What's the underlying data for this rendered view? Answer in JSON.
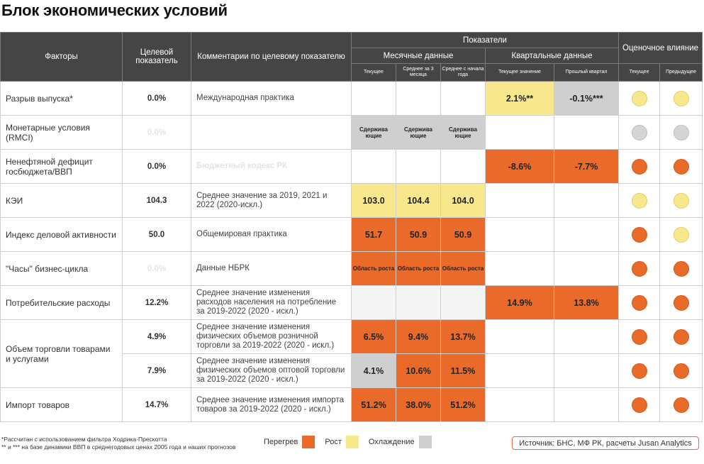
{
  "title": "Блок экономических условий",
  "header": {
    "factors": "Факторы",
    "target": "Целевой показатель",
    "comment": "Комментарии по целевому показателю",
    "indicators": "Показатели",
    "impact": "Оценочное влияние",
    "monthly": "Месячные данные",
    "quarterly": "Квартальные данные",
    "m_current": "Текущее",
    "m_3month": "Среднее за 3 месяца",
    "m_ytd": "Среднее с начала года",
    "q_current": "Текущее значение",
    "q_prev": "Прошлый квартал",
    "i_current": "Текущее",
    "i_prev": "Предыдущее"
  },
  "rows": [
    {
      "factor": "Разрыв выпуска*",
      "target": "0.0%",
      "comment": "Международная практика",
      "m": [
        "",
        "",
        ""
      ],
      "q": [
        "2.1%**",
        "-0.1%***"
      ],
      "impact": [
        "yellow",
        "yellow"
      ]
    },
    {
      "factor": "Монетарные условия (RMCI)",
      "target": "0.0%",
      "comment": "",
      "m": [
        "Сдержива ющие",
        "Сдержива ющие",
        "Сдержива ющие"
      ],
      "q": [
        "",
        ""
      ],
      "impact": [
        "gray",
        "gray"
      ]
    },
    {
      "factor": "Ненефтяной дефицит госбюджета/ВВП",
      "target": "0.0%",
      "comment": "Бюджетный кодекс РК",
      "m": [
        "",
        "",
        ""
      ],
      "q": [
        "-8.6%",
        "-7.7%"
      ],
      "impact": [
        "orange",
        "orange"
      ]
    },
    {
      "factor": "КЭИ",
      "target": "104.3",
      "comment": "Среднее значение за 2019, 2021 и 2022 (2020-искл.)",
      "m": [
        "103.0",
        "104.4",
        "104.0"
      ],
      "q": [
        "",
        ""
      ],
      "impact": [
        "yellow",
        "yellow"
      ]
    },
    {
      "factor": "Индекс деловой активности",
      "target": "50.0",
      "comment": "Общемировая практика",
      "m": [
        "51.7",
        "50.9",
        "50.9"
      ],
      "q": [
        "",
        ""
      ],
      "impact": [
        "orange",
        "yellow"
      ]
    },
    {
      "factor": "\"Часы\" бизнес-цикла",
      "target": "0.0%",
      "comment": "Данные НБРК",
      "m": [
        "Область роста",
        "Область роста",
        "Область роста"
      ],
      "q": [
        "",
        ""
      ],
      "impact": [
        "orange",
        "orange"
      ]
    },
    {
      "factor": "Потребительские расходы",
      "target": "12.2%",
      "comment": "Среднее значение изменения расходов населения на потребление за 2019-2022 (2020 - искл.)",
      "m": [
        "",
        "",
        ""
      ],
      "q": [
        "14.9%",
        "13.8%"
      ],
      "impact": [
        "orange",
        "orange"
      ]
    },
    {
      "factor": "Объем торговли товарами и услугами",
      "target": "4.9%",
      "comment": "Среднее значение изменения физических объемов розничной торговли за 2019-2022 (2020 - искл.)",
      "m": [
        "6.5%",
        "9.4%",
        "13.7%"
      ],
      "q": [
        "",
        ""
      ],
      "impact": [
        "orange",
        "orange"
      ]
    },
    {
      "factor": "",
      "target": "7.9%",
      "comment": "Среднее значение изменения физических объемов оптовой торговли за 2019-2022 (2020 - искл.)",
      "m": [
        "4.1%",
        "10.6%",
        "11.5%"
      ],
      "q": [
        "",
        ""
      ],
      "impact": [
        "orange",
        "orange"
      ]
    },
    {
      "factor": "Импорт товаров",
      "target": "14.7%",
      "comment": "Среднее значение изменения импорта товаров за 2019-2022 (2020 - искл.)",
      "m": [
        "51.2%",
        "38.0%",
        "51.2%"
      ],
      "q": [
        "",
        ""
      ],
      "impact": [
        "orange",
        "orange"
      ]
    }
  ],
  "footnote": "*Рассчитан с использованием фильтра Ходрика-Прескотта\n** и *** на базе динамики ВВП в среднегодовых ценах 2005 года и наших прогнозов",
  "legend": {
    "overheat": "Перегрев",
    "growth": "Рост",
    "cooling": "Охлаждение"
  },
  "colors": {
    "overheat": "#ea6a2a",
    "growth": "#f7e88c",
    "cooling": "#cfcfcf",
    "header": "#454545"
  },
  "source": "Источник: БНС, МФ РК, расчеты Jusan Analytics"
}
